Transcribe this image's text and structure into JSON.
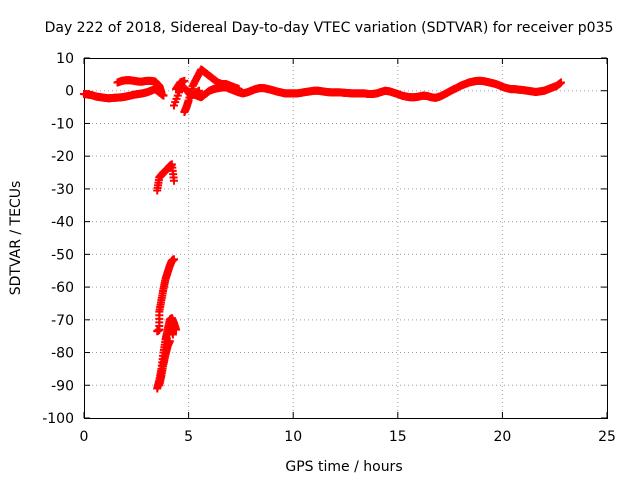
{
  "chart_data": {
    "type": "scatter",
    "title": "Day 222 of 2018, Sidereal Day-to-day VTEC variation (SDTVAR) for receiver p035",
    "xlabel": "GPS time / hours",
    "ylabel": "SDTVAR / TECUs",
    "xlim": [
      0,
      25
    ],
    "ylim": [
      -100,
      10
    ],
    "xticks": [
      0,
      5,
      10,
      15,
      20,
      25
    ],
    "yticks": [
      10,
      0,
      -10,
      -20,
      -30,
      -40,
      -50,
      -60,
      -70,
      -80,
      -90,
      -100
    ],
    "grid": true,
    "marker": "plus",
    "color": "#ff0000",
    "series": [
      {
        "name": "main-trace",
        "points": [
          [
            0.0,
            -1.0
          ],
          [
            0.2,
            -1.2
          ],
          [
            0.4,
            -1.4
          ],
          [
            0.6,
            -1.8
          ],
          [
            0.8,
            -2.0
          ],
          [
            1.0,
            -2.2
          ],
          [
            1.2,
            -2.3
          ],
          [
            1.4,
            -2.2
          ],
          [
            1.6,
            -2.1
          ],
          [
            1.8,
            -2.0
          ],
          [
            2.0,
            -1.8
          ],
          [
            2.2,
            -1.5
          ],
          [
            2.4,
            -1.2
          ],
          [
            2.6,
            -1.0
          ],
          [
            2.8,
            -0.8
          ],
          [
            3.0,
            -0.5
          ],
          [
            3.2,
            0.0
          ],
          [
            3.4,
            0.5
          ],
          [
            3.6,
            -0.5
          ],
          [
            3.8,
            -1.5
          ],
          [
            5.0,
            -0.5
          ],
          [
            5.2,
            -1.0
          ],
          [
            5.4,
            -1.5
          ],
          [
            5.6,
            -2.0
          ],
          [
            5.8,
            -1.0
          ],
          [
            6.0,
            0.0
          ],
          [
            6.2,
            0.5
          ],
          [
            6.4,
            0.8
          ],
          [
            6.6,
            1.0
          ],
          [
            6.8,
            1.0
          ],
          [
            7.0,
            0.5
          ],
          [
            7.2,
            0.0
          ],
          [
            7.4,
            -0.5
          ],
          [
            7.6,
            -0.8
          ],
          [
            7.8,
            -0.5
          ],
          [
            8.0,
            0.0
          ],
          [
            8.2,
            0.5
          ],
          [
            8.4,
            0.8
          ],
          [
            8.6,
            0.8
          ],
          [
            8.8,
            0.5
          ],
          [
            9.0,
            0.2
          ],
          [
            9.2,
            -0.2
          ],
          [
            9.4,
            -0.5
          ],
          [
            9.6,
            -0.8
          ],
          [
            9.8,
            -0.8
          ],
          [
            10.0,
            -0.8
          ],
          [
            10.2,
            -0.8
          ],
          [
            10.4,
            -0.6
          ],
          [
            10.6,
            -0.4
          ],
          [
            10.8,
            -0.2
          ],
          [
            11.0,
            0.0
          ],
          [
            11.2,
            0.0
          ],
          [
            11.4,
            -0.2
          ],
          [
            11.6,
            -0.4
          ],
          [
            11.8,
            -0.5
          ],
          [
            12.0,
            -0.5
          ],
          [
            12.2,
            -0.5
          ],
          [
            12.4,
            -0.6
          ],
          [
            12.6,
            -0.7
          ],
          [
            12.8,
            -0.8
          ],
          [
            13.0,
            -0.8
          ],
          [
            13.2,
            -0.8
          ],
          [
            13.4,
            -0.8
          ],
          [
            13.6,
            -1.0
          ],
          [
            13.8,
            -1.0
          ],
          [
            14.0,
            -0.8
          ],
          [
            14.2,
            -0.4
          ],
          [
            14.4,
            0.0
          ],
          [
            14.6,
            -0.2
          ],
          [
            14.8,
            -0.6
          ],
          [
            15.0,
            -1.0
          ],
          [
            15.2,
            -1.5
          ],
          [
            15.4,
            -1.8
          ],
          [
            15.6,
            -2.0
          ],
          [
            15.8,
            -2.0
          ],
          [
            16.0,
            -1.8
          ],
          [
            16.2,
            -1.5
          ],
          [
            16.4,
            -1.6
          ],
          [
            16.6,
            -2.0
          ],
          [
            16.8,
            -2.2
          ],
          [
            17.0,
            -1.8
          ],
          [
            17.2,
            -1.2
          ],
          [
            17.4,
            -0.5
          ],
          [
            17.6,
            0.2
          ],
          [
            17.8,
            0.8
          ],
          [
            18.0,
            1.5
          ],
          [
            18.2,
            2.0
          ],
          [
            18.4,
            2.5
          ],
          [
            18.6,
            2.8
          ],
          [
            18.8,
            3.0
          ],
          [
            19.0,
            3.0
          ],
          [
            19.2,
            2.8
          ],
          [
            19.4,
            2.5
          ],
          [
            19.6,
            2.2
          ],
          [
            19.8,
            1.8
          ],
          [
            20.0,
            1.2
          ],
          [
            20.2,
            0.8
          ],
          [
            20.4,
            0.5
          ],
          [
            20.6,
            0.5
          ],
          [
            20.8,
            0.3
          ],
          [
            21.0,
            0.2
          ],
          [
            21.2,
            0.0
          ],
          [
            21.4,
            -0.2
          ],
          [
            21.6,
            -0.4
          ],
          [
            21.8,
            -0.2
          ],
          [
            22.0,
            0.0
          ],
          [
            22.2,
            0.5
          ],
          [
            22.4,
            1.0
          ],
          [
            22.6,
            1.5
          ],
          [
            22.8,
            2.5
          ]
        ]
      },
      {
        "name": "upper-branch",
        "points": [
          [
            1.6,
            2.5
          ],
          [
            1.8,
            3.0
          ],
          [
            2.0,
            3.2
          ],
          [
            2.2,
            3.2
          ],
          [
            2.4,
            3.0
          ],
          [
            2.6,
            2.8
          ],
          [
            2.8,
            2.8
          ],
          [
            3.0,
            3.0
          ],
          [
            3.2,
            3.0
          ],
          [
            3.4,
            2.8
          ],
          [
            3.6,
            1.5
          ],
          [
            3.7,
            -0.5
          ],
          [
            4.4,
            0.5
          ],
          [
            4.6,
            2.5
          ],
          [
            4.8,
            3.0
          ],
          [
            4.8,
            -6.5
          ],
          [
            4.9,
            -5.0
          ],
          [
            5.0,
            -3.0
          ],
          [
            5.2,
            1.5
          ],
          [
            5.4,
            4.0
          ],
          [
            5.6,
            6.5
          ],
          [
            5.8,
            5.5
          ],
          [
            6.0,
            4.5
          ],
          [
            6.2,
            3.5
          ],
          [
            6.4,
            2.5
          ],
          [
            6.6,
            2.0
          ],
          [
            6.8,
            2.0
          ],
          [
            7.0,
            1.5
          ],
          [
            7.2,
            1.0
          ],
          [
            7.4,
            0.5
          ],
          [
            4.3,
            -4.5
          ],
          [
            4.6,
            0.5
          ],
          [
            4.8,
            1.0
          ],
          [
            5.1,
            -1.5
          ],
          [
            5.3,
            -1.0
          ],
          [
            5.5,
            0.0
          ]
        ]
      },
      {
        "name": "group-near-minus-25",
        "points": [
          [
            3.5,
            -30.5
          ],
          [
            3.6,
            -26.5
          ],
          [
            3.7,
            -25.8
          ],
          [
            3.8,
            -25.0
          ],
          [
            3.9,
            -24.5
          ],
          [
            4.0,
            -23.8
          ],
          [
            4.1,
            -23.0
          ],
          [
            4.2,
            -22.5
          ],
          [
            4.3,
            -27.5
          ]
        ]
      },
      {
        "name": "deep-branch-a",
        "points": [
          [
            3.5,
            -91.0
          ],
          [
            3.6,
            -88.5
          ],
          [
            3.7,
            -85.0
          ],
          [
            3.8,
            -80.0
          ],
          [
            3.9,
            -76.0
          ],
          [
            4.0,
            -73.0
          ],
          [
            4.1,
            -70.0
          ],
          [
            4.2,
            -69.5
          ],
          [
            4.3,
            -71.0
          ],
          [
            4.4,
            -73.0
          ],
          [
            4.15,
            -72.0
          ],
          [
            4.25,
            -74.5
          ]
        ]
      },
      {
        "name": "deep-branch-b",
        "points": [
          [
            3.5,
            -73.5
          ],
          [
            3.6,
            -73.0
          ],
          [
            3.6,
            -67.5
          ],
          [
            3.7,
            -64.0
          ],
          [
            3.8,
            -60.5
          ],
          [
            3.9,
            -57.5
          ],
          [
            4.0,
            -55.5
          ],
          [
            4.1,
            -53.5
          ],
          [
            4.2,
            -52.0
          ],
          [
            4.3,
            -51.5
          ],
          [
            3.6,
            -90.0
          ],
          [
            3.7,
            -87.0
          ],
          [
            3.8,
            -83.5
          ],
          [
            3.9,
            -80.5
          ],
          [
            4.0,
            -78.0
          ],
          [
            4.1,
            -76.5
          ]
        ]
      }
    ]
  }
}
